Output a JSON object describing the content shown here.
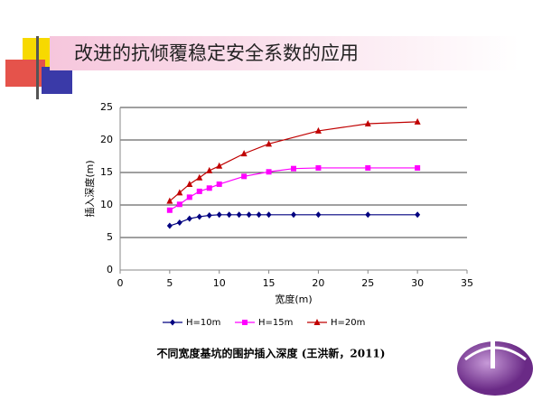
{
  "slide": {
    "title": "改进的抗倾覆稳定安全系数的应用",
    "caption": "不同宽度基坑的围护插入深度 (王洪新，2011)"
  },
  "chart_data": {
    "type": "line",
    "x_label": "宽度(m)",
    "y_label": "插入深度(m)",
    "xlim": [
      0,
      35
    ],
    "xticks": [
      0,
      5,
      10,
      15,
      20,
      25,
      30,
      35
    ],
    "ylim": [
      0,
      25
    ],
    "yticks": [
      0,
      5,
      10,
      15,
      20,
      25
    ],
    "grid": true,
    "series": [
      {
        "name": "H=10m",
        "color": "#000080",
        "marker": "diamond",
        "x": [
          5,
          6,
          7,
          8,
          9,
          10,
          11,
          12,
          13,
          14,
          15,
          17.5,
          20,
          25,
          30
        ],
        "values": [
          6.8,
          7.3,
          7.9,
          8.2,
          8.4,
          8.5,
          8.5,
          8.5,
          8.5,
          8.5,
          8.5,
          8.5,
          8.5,
          8.5,
          8.5
        ]
      },
      {
        "name": "H=15m",
        "color": "#ff00ff",
        "marker": "square",
        "x": [
          5,
          6,
          7,
          8,
          9,
          10,
          12.5,
          15,
          17.5,
          20,
          25,
          30
        ],
        "values": [
          9.2,
          10.1,
          11.2,
          12.1,
          12.6,
          13.2,
          14.4,
          15.1,
          15.6,
          15.7,
          15.7,
          15.7
        ]
      },
      {
        "name": "H=20m",
        "color": "#c00000",
        "marker": "triangle",
        "x": [
          5,
          6,
          7,
          8,
          9,
          10,
          12.5,
          15,
          20,
          25,
          30
        ],
        "values": [
          10.6,
          11.9,
          13.2,
          14.2,
          15.3,
          16.0,
          17.9,
          19.4,
          21.4,
          22.5,
          22.8
        ]
      }
    ]
  }
}
